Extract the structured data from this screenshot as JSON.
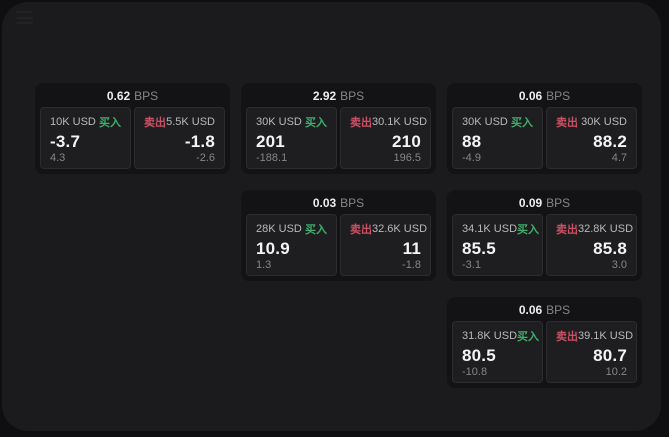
{
  "labels": {
    "bps": "BPS",
    "buy": "买入",
    "sell": "卖出"
  },
  "colors": {
    "buy_green": "#3fae6d",
    "sell_red": "#cb5063",
    "page_bg": "#0f0f11",
    "panel_bg": "#1b1b1d",
    "card_bg": "#131315",
    "pane_bg": "#1e1e20"
  },
  "cards": [
    {
      "grid": {
        "col": 1,
        "row": 1
      },
      "bps_value": "0.62",
      "buy": {
        "amount": "10K USD",
        "value": "-3.7",
        "delta": "4.3"
      },
      "sell": {
        "amount": "5.5K USD",
        "value": "-1.8",
        "delta": "-2.6"
      }
    },
    {
      "grid": {
        "col": 2,
        "row": 1
      },
      "bps_value": "2.92",
      "buy": {
        "amount": "30K USD",
        "value": "201",
        "delta": "-188.1"
      },
      "sell": {
        "amount": "30.1K USD",
        "value": "210",
        "delta": "196.5"
      }
    },
    {
      "grid": {
        "col": 3,
        "row": 1
      },
      "bps_value": "0.06",
      "buy": {
        "amount": "30K USD",
        "value": "88",
        "delta": "-4.9"
      },
      "sell": {
        "amount": "30K USD",
        "value": "88.2",
        "delta": "4.7"
      }
    },
    {
      "grid": {
        "col": 2,
        "row": 2
      },
      "bps_value": "0.03",
      "buy": {
        "amount": "28K USD",
        "value": "10.9",
        "delta": "1.3"
      },
      "sell": {
        "amount": "32.6K USD",
        "value": "11",
        "delta": "-1.8"
      }
    },
    {
      "grid": {
        "col": 3,
        "row": 2
      },
      "bps_value": "0.09",
      "buy": {
        "amount": "34.1K USD",
        "value": "85.5",
        "delta": "-3.1"
      },
      "sell": {
        "amount": "32.8K USD",
        "value": "85.8",
        "delta": "3.0"
      }
    },
    {
      "grid": {
        "col": 3,
        "row": 3
      },
      "bps_value": "0.06",
      "buy": {
        "amount": "31.8K USD",
        "value": "80.5",
        "delta": "-10.8"
      },
      "sell": {
        "amount": "39.1K USD",
        "value": "80.7",
        "delta": "10.2"
      }
    }
  ]
}
